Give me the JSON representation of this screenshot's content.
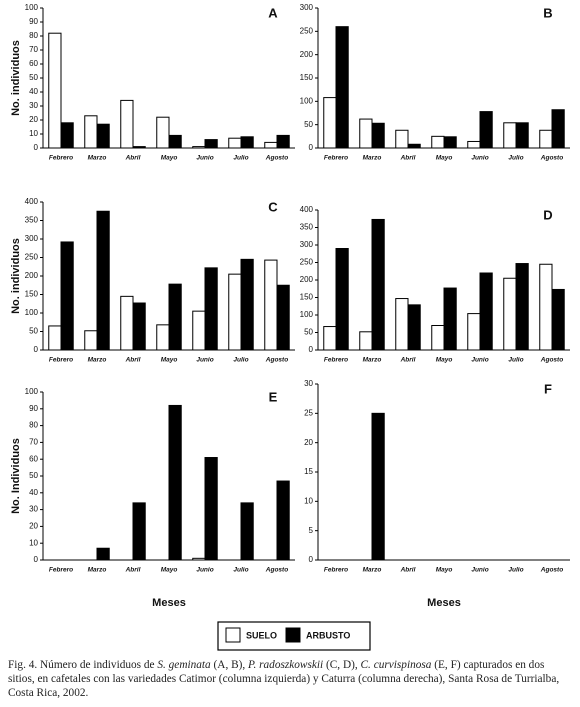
{
  "chart_data": [
    {
      "type": "bar",
      "title": "A",
      "ylabel": "No. individuos",
      "categories": [
        "Febrero",
        "Marzo",
        "Abril",
        "Mayo",
        "Junio",
        "Julio",
        "Agosto"
      ],
      "series": [
        {
          "name": "SUELO",
          "color": "#ffffff",
          "values": [
            82,
            23,
            34,
            22,
            1,
            7,
            4
          ]
        },
        {
          "name": "ARBUSTO",
          "color": "#000000",
          "values": [
            18,
            17,
            1,
            9,
            6,
            8,
            9
          ]
        }
      ],
      "ylim": [
        0,
        100
      ],
      "yticks": [
        0,
        10,
        20,
        30,
        40,
        50,
        60,
        70,
        80,
        90,
        100
      ]
    },
    {
      "type": "bar",
      "title": "B",
      "categories": [
        "Febrero",
        "Marzo",
        "Abril",
        "Mayo",
        "Junio",
        "Julio",
        "Agosto"
      ],
      "series": [
        {
          "color": "#ffffff",
          "values": [
            108,
            62,
            38,
            25,
            14,
            54,
            38
          ]
        },
        {
          "color": "#000000",
          "values": [
            260,
            53,
            8,
            24,
            78,
            54,
            82
          ]
        }
      ],
      "ylim": [
        0,
        300
      ],
      "yticks": [
        0,
        50,
        100,
        150,
        200,
        250,
        300
      ]
    },
    {
      "type": "bar",
      "title": "C",
      "ylabel": "No. individuos",
      "categories": [
        "Febrero",
        "Marzo",
        "Abril",
        "Mayo",
        "Junio",
        "Julio",
        "Agosto"
      ],
      "series": [
        {
          "color": "#ffffff",
          "values": [
            65,
            52,
            145,
            68,
            105,
            205,
            243
          ]
        },
        {
          "color": "#000000",
          "values": [
            292,
            375,
            127,
            178,
            222,
            245,
            175
          ]
        }
      ],
      "ylim": [
        0,
        400
      ],
      "yticks": [
        0,
        50,
        100,
        150,
        200,
        250,
        300,
        350,
        400
      ]
    },
    {
      "type": "bar",
      "title": "D",
      "categories": [
        "Febrero",
        "Marzo",
        "Abril",
        "Mayo",
        "Junio",
        "Julio",
        "Agosto"
      ],
      "series": [
        {
          "color": "#ffffff",
          "values": [
            67,
            52,
            147,
            70,
            104,
            205,
            245
          ]
        },
        {
          "color": "#000000",
          "values": [
            290,
            373,
            129,
            177,
            220,
            247,
            173
          ]
        }
      ],
      "ylim": [
        0,
        400
      ],
      "yticks": [
        0,
        50,
        100,
        150,
        200,
        250,
        300,
        350,
        400
      ]
    },
    {
      "type": "bar",
      "title": "E",
      "ylabel": "No. Individuos",
      "xlabel": "Meses",
      "categories": [
        "Febrero",
        "Marzo",
        "Abril",
        "Mayo",
        "Junio",
        "Julio",
        "Agosto"
      ],
      "series": [
        {
          "color": "#ffffff",
          "values": [
            0,
            0,
            0,
            0,
            1,
            0,
            0
          ]
        },
        {
          "color": "#000000",
          "values": [
            0,
            7,
            34,
            92,
            61,
            34,
            47
          ]
        }
      ],
      "ylim": [
        0,
        100
      ],
      "yticks": [
        0,
        10,
        20,
        30,
        40,
        50,
        60,
        70,
        80,
        90,
        100
      ]
    },
    {
      "type": "bar",
      "title": "F",
      "xlabel": "Meses",
      "categories": [
        "Febrero",
        "Marzo",
        "Abril",
        "Mayo",
        "Junio",
        "Julio",
        "Agosto"
      ],
      "series": [
        {
          "color": "#ffffff",
          "values": [
            0,
            0,
            0,
            0,
            0,
            0,
            0
          ]
        },
        {
          "color": "#000000",
          "values": [
            0,
            25,
            0,
            0,
            0,
            0,
            0
          ]
        }
      ],
      "ylim": [
        0,
        30
      ],
      "yticks": [
        0,
        5,
        10,
        15,
        20,
        25,
        30
      ]
    }
  ],
  "caption": [
    "Fig. 4. Número de individuos de ",
    "S. geminata",
    " (A, B), ",
    "P. radoszkowskii",
    " (C, D), ",
    "C. curvispinosa",
    " (E, F) capturados en dos sitios, en cafetales con las variedades Catimor (columna izquierda) y Caturra (columna derecha), Santa Rosa de Turrialba, Costa Rica, 2002."
  ]
}
